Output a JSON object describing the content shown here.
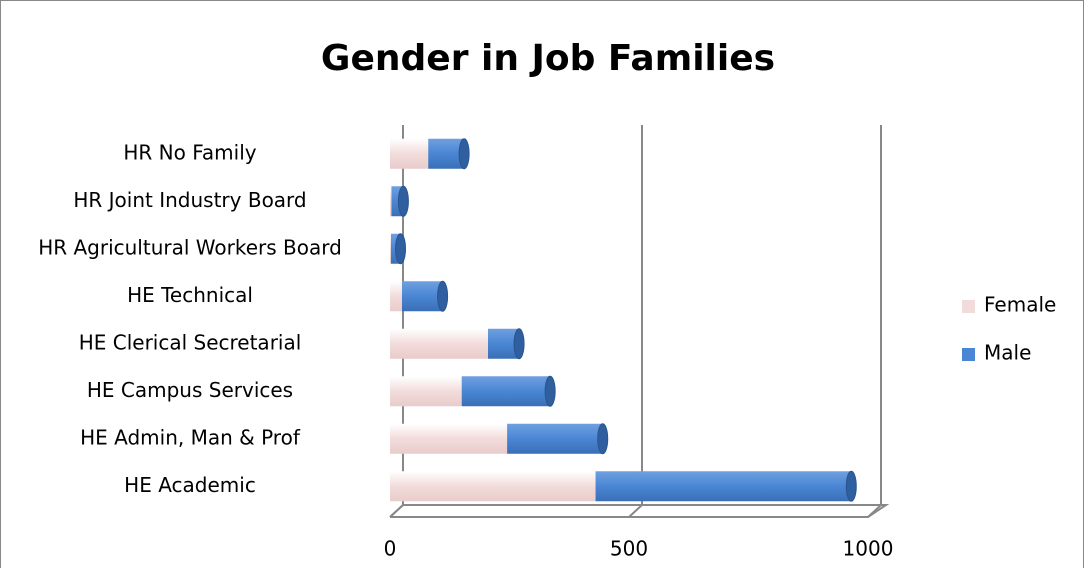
{
  "chart_data": {
    "type": "stacked_bar_horizontal",
    "title": "Gender in Job Families",
    "categories": [
      "HR No Family",
      "HR Joint Industry Board",
      "HR Agricultural Workers Board",
      "HE Technical",
      "HE Clerical Secretarial",
      "HE Campus Services",
      "HE Admin, Man & Prof",
      "HE Academic"
    ],
    "series": [
      {
        "name": "Female",
        "color": "#f2dcdb",
        "values": [
          80,
          3,
          2,
          25,
          205,
          150,
          245,
          430
        ]
      },
      {
        "name": "Male",
        "color": "#4a86d4",
        "values": [
          75,
          25,
          20,
          85,
          65,
          185,
          200,
          535
        ]
      }
    ],
    "xlim": [
      0,
      1000
    ],
    "xticks": [
      0,
      500,
      1000
    ],
    "grid": true,
    "legend": "right"
  }
}
